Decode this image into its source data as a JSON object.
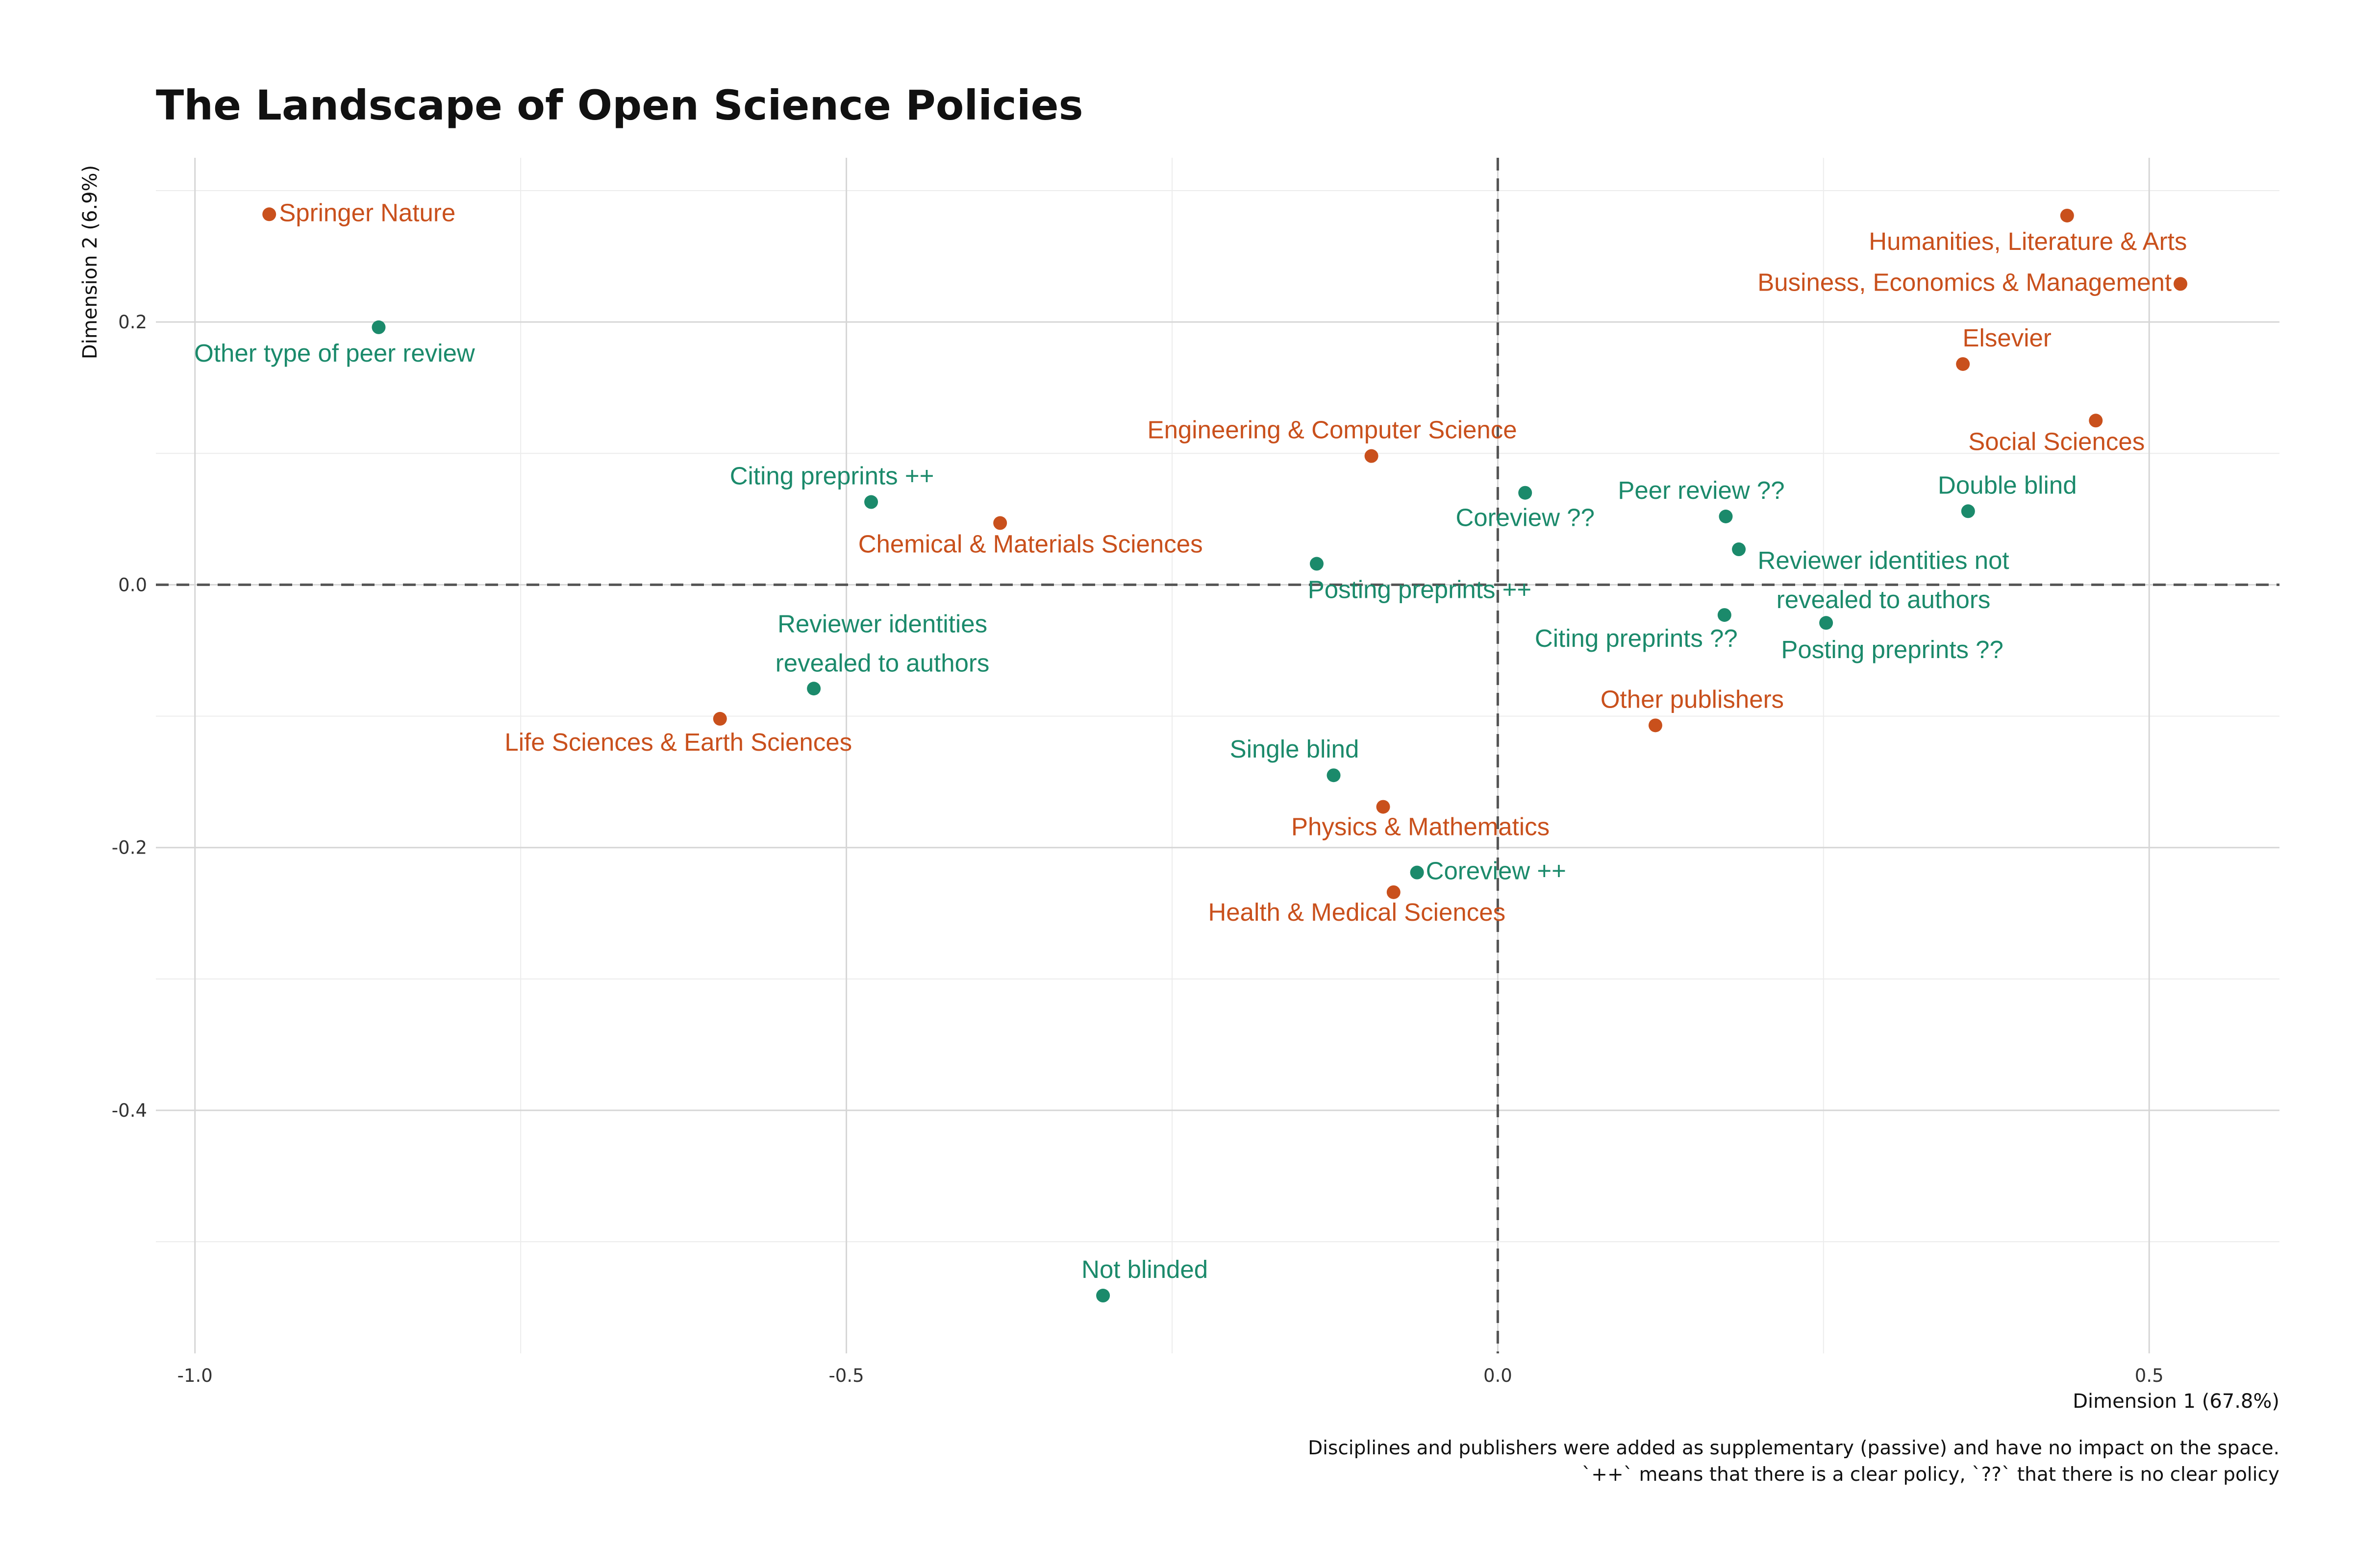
{
  "chart_data": {
    "type": "scatter",
    "title": "The Landscape of Open Science Policies",
    "xlabel": "Dimension 1 (67.8%)",
    "ylabel": "Dimension 2 (6.9%)",
    "xlim": [
      -1.03,
      0.6
    ],
    "ylim": [
      -0.585,
      0.325
    ],
    "x_ticks": [
      -1.0,
      -0.5,
      0.0,
      0.5
    ],
    "x_tick_labels": [
      "-1.0",
      "-0.5",
      "0.0",
      "0.5"
    ],
    "y_ticks": [
      -0.4,
      -0.2,
      0.0,
      0.2
    ],
    "y_tick_labels": [
      "-0.4",
      "-0.2",
      "0.0",
      "0.2"
    ],
    "grid": true,
    "reference_lines": {
      "x": 0,
      "y": 0
    },
    "colors": {
      "green": "#1b8a6b",
      "orange": "#c9501c"
    },
    "caption": [
      "Disciplines and publishers were added as supplementary (passive) and have no impact on the space.",
      "`++` means that there is a clear policy, `??` that there is no clear policy"
    ],
    "points": [
      {
        "label": "Springer Nature",
        "x": -0.943,
        "y": 0.282,
        "color": "orange",
        "align": "start"
      },
      {
        "label": "Other type of peer review",
        "x": -0.859,
        "y": 0.196,
        "color": "green",
        "align": "middle"
      },
      {
        "label": "Humanities, Literature & Arts",
        "x": 0.437,
        "y": 0.281,
        "color": "orange",
        "align": "middle"
      },
      {
        "label": "Business, Economics & Management",
        "x": 0.524,
        "y": 0.229,
        "color": "orange",
        "align": "end"
      },
      {
        "label": "Elsevier",
        "x": 0.357,
        "y": 0.168,
        "color": "orange",
        "align": "middle"
      },
      {
        "label": "Social Sciences",
        "x": 0.459,
        "y": 0.125,
        "color": "orange",
        "align": "middle"
      },
      {
        "label": "Engineering & Computer Science",
        "x": -0.097,
        "y": 0.098,
        "color": "orange",
        "align": "middle"
      },
      {
        "label": "Citing preprints ++",
        "x": -0.481,
        "y": 0.063,
        "color": "green",
        "align": "middle"
      },
      {
        "label": "Chemical & Materials Sciences",
        "x": -0.382,
        "y": 0.047,
        "color": "orange",
        "align": "middle"
      },
      {
        "label": "Coreview ??",
        "x": 0.021,
        "y": 0.07,
        "color": "green",
        "align": "middle"
      },
      {
        "label": "Peer review ??",
        "x": 0.175,
        "y": 0.052,
        "color": "green",
        "align": "middle"
      },
      {
        "label": "Double blind",
        "x": 0.361,
        "y": 0.056,
        "color": "green",
        "align": "middle"
      },
      {
        "label": "Reviewer identities not revealed to authors",
        "lines": [
          "Reviewer identities not",
          "revealed to authors"
        ],
        "x": 0.185,
        "y": 0.027,
        "color": "green",
        "align": "middle"
      },
      {
        "label": "Posting preprints ++",
        "x": -0.139,
        "y": 0.016,
        "color": "green",
        "align": "middle"
      },
      {
        "label": "Citing preprints ??",
        "x": 0.174,
        "y": -0.023,
        "color": "green",
        "align": "middle"
      },
      {
        "label": "Posting preprints ??",
        "x": 0.252,
        "y": -0.029,
        "color": "green",
        "align": "middle"
      },
      {
        "label": "Reviewer identities revealed to authors",
        "lines": [
          "Reviewer identities",
          "revealed to authors"
        ],
        "x": -0.525,
        "y": -0.079,
        "color": "green",
        "align": "middle"
      },
      {
        "label": "Life Sciences & Earth Sciences",
        "x": -0.597,
        "y": -0.102,
        "color": "orange",
        "align": "middle"
      },
      {
        "label": "Other publishers",
        "x": 0.121,
        "y": -0.107,
        "color": "orange",
        "align": "middle"
      },
      {
        "label": "Single blind",
        "x": -0.126,
        "y": -0.145,
        "color": "green",
        "align": "middle"
      },
      {
        "label": "Physics & Mathematics",
        "x": -0.088,
        "y": -0.169,
        "color": "orange",
        "align": "middle"
      },
      {
        "label": "Coreview ++",
        "x": -0.062,
        "y": -0.219,
        "color": "green",
        "align": "start"
      },
      {
        "label": "Health & Medical Sciences",
        "x": -0.08,
        "y": -0.234,
        "color": "orange",
        "align": "middle"
      },
      {
        "label": "Not blinded",
        "x": -0.303,
        "y": -0.541,
        "color": "green",
        "align": "middle"
      }
    ]
  }
}
